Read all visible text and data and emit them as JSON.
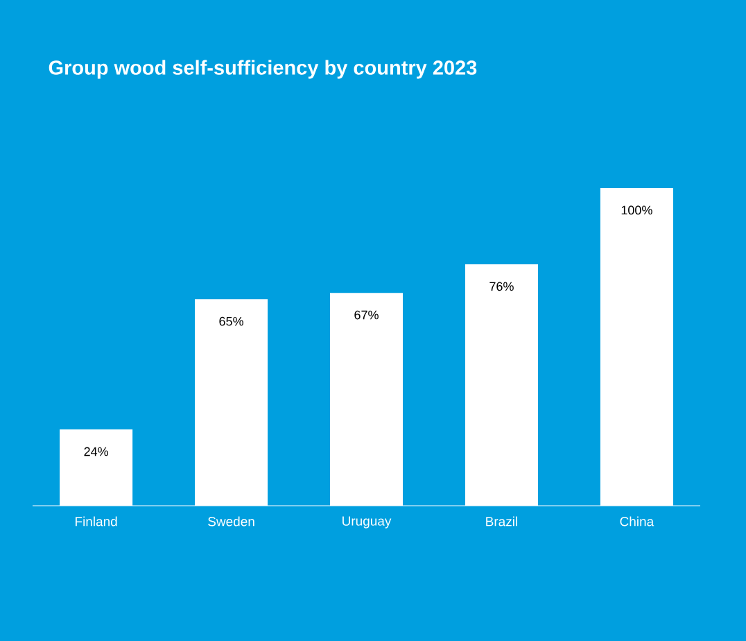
{
  "chart_data": {
    "type": "bar",
    "title": "Group wood self-sufficiency by country 2023",
    "categories": [
      "Finland",
      "Sweden",
      "Uruguay",
      "Brazil",
      "China"
    ],
    "values": [
      24,
      65,
      67,
      76,
      100
    ],
    "value_labels": [
      "24%",
      "65%",
      "67%",
      "76%",
      "100%"
    ],
    "color": "#ffffff"
  }
}
